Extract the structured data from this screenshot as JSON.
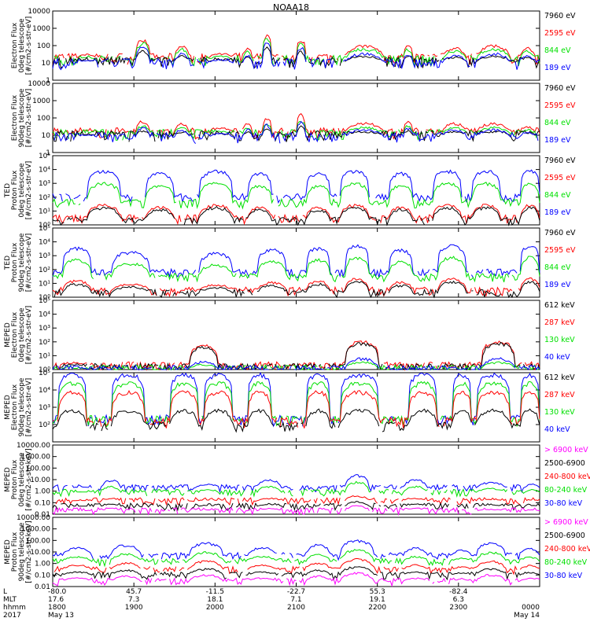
{
  "title": "NOAA18",
  "colors": {
    "black": "#000000",
    "red": "#ff0000",
    "green": "#00e000",
    "blue": "#0000ff",
    "magenta": "#ff00ff"
  },
  "x_axis": {
    "row_labels": [
      "L",
      "MLT",
      "hhmm",
      "2017"
    ],
    "columns": [
      {
        "L": "-80.0",
        "MLT": "17.6",
        "hhmm": "1800",
        "date": "May 13",
        "frac": 0.0
      },
      {
        "L": "45.7",
        "MLT": "7.3",
        "hhmm": "1900",
        "date": "",
        "frac": 0.1667
      },
      {
        "L": "-11.5",
        "MLT": "18.1",
        "hhmm": "2000",
        "date": "",
        "frac": 0.3333
      },
      {
        "L": "-22.7",
        "MLT": "7.1",
        "hhmm": "2100",
        "date": "",
        "frac": 0.5
      },
      {
        "L": "55.3",
        "MLT": "19.1",
        "hhmm": "2200",
        "date": "",
        "frac": 0.6667
      },
      {
        "L": "-82.4",
        "MLT": "6.3",
        "hhmm": "2300",
        "date": "",
        "frac": 0.8333
      },
      {
        "L": "",
        "MLT": "",
        "hhmm": "0000",
        "date": "May 14",
        "frac": 1.0
      }
    ]
  },
  "chart_data": [
    {
      "type": "line",
      "scale": "log",
      "ylabel": [
        "Electron Flux",
        "0deg telescope",
        "[#/cm2-s-str-eV]"
      ],
      "ylim": [
        1,
        10000
      ],
      "ticks": [
        {
          "v": 1,
          "t": "1"
        },
        {
          "v": 10,
          "t": "10"
        },
        {
          "v": 100,
          "t": "100"
        },
        {
          "v": 1000,
          "t": "1000"
        },
        {
          "v": 10000,
          "t": "10000"
        }
      ],
      "series": [
        {
          "name": "7960 eV",
          "color": "#000000",
          "base": 12,
          "peak": 60
        },
        {
          "name": "2595 eV",
          "color": "#ff0000",
          "base": 20,
          "peak": 300
        },
        {
          "name": "844 eV",
          "color": "#00e000",
          "base": 15,
          "peak": 200
        },
        {
          "name": "189 eV",
          "color": "#0000ff",
          "base": 10,
          "peak": 100
        }
      ],
      "events": [
        [
          0.05,
          0.09,
          40
        ],
        [
          0.17,
          0.2,
          800
        ],
        [
          0.25,
          0.28,
          300
        ],
        [
          0.32,
          0.37,
          60
        ],
        [
          0.39,
          0.41,
          200
        ],
        [
          0.43,
          0.45,
          1500
        ],
        [
          0.5,
          0.52,
          800
        ],
        [
          0.6,
          0.68,
          300
        ],
        [
          0.72,
          0.74,
          300
        ],
        [
          0.8,
          0.85,
          200
        ],
        [
          0.87,
          0.94,
          300
        ],
        [
          0.96,
          0.99,
          200
        ]
      ]
    },
    {
      "type": "line",
      "scale": "log",
      "ylabel": [
        "Electron Flux",
        "90deg telescope",
        "[#/cm2-s-str-eV]"
      ],
      "ylim": [
        1,
        10000
      ],
      "ticks": [
        {
          "v": 1,
          "t": "1"
        },
        {
          "v": 10,
          "t": "10"
        },
        {
          "v": 100,
          "t": "100"
        },
        {
          "v": 1000,
          "t": "1000"
        },
        {
          "v": 10000,
          "t": "10000"
        }
      ],
      "series": [
        {
          "name": "7960 eV",
          "color": "#000000",
          "base": 10,
          "peak": 40
        },
        {
          "name": "2595 eV",
          "color": "#ff0000",
          "base": 15,
          "peak": 200
        },
        {
          "name": "844 eV",
          "color": "#00e000",
          "base": 12,
          "peak": 100
        },
        {
          "name": "189 eV",
          "color": "#0000ff",
          "base": 8,
          "peak": 80
        }
      ],
      "events": [
        [
          0.05,
          0.09,
          30
        ],
        [
          0.17,
          0.2,
          300
        ],
        [
          0.25,
          0.28,
          200
        ],
        [
          0.32,
          0.37,
          60
        ],
        [
          0.39,
          0.41,
          200
        ],
        [
          0.43,
          0.45,
          500
        ],
        [
          0.5,
          0.52,
          800
        ],
        [
          0.6,
          0.68,
          200
        ],
        [
          0.72,
          0.74,
          300
        ],
        [
          0.8,
          0.85,
          200
        ],
        [
          0.87,
          0.94,
          200
        ],
        [
          0.96,
          0.99,
          100
        ]
      ]
    },
    {
      "type": "line",
      "scale": "log",
      "ylabel": [
        "TED",
        "Proton Flux",
        "0deg telescope",
        "[#/cm2-s-str-eV]"
      ],
      "ylim": [
        1,
        100000
      ],
      "ticks": [
        {
          "v": 1,
          "t": "10⁰"
        },
        {
          "v": 10,
          "t": "10¹"
        },
        {
          "v": 100,
          "t": "10²"
        },
        {
          "v": 1000,
          "t": "10³"
        },
        {
          "v": 10000,
          "t": "10⁴"
        },
        {
          "v": 100000,
          "t": "10⁵"
        }
      ],
      "series": [
        {
          "name": "7960 eV",
          "color": "#000000",
          "base": 2,
          "peak": 8
        },
        {
          "name": "2595 eV",
          "color": "#ff0000",
          "base": 3,
          "peak": 12
        },
        {
          "name": "844 eV",
          "color": "#00e000",
          "base": 40,
          "peak": 400
        },
        {
          "name": "189 eV",
          "color": "#0000ff",
          "base": 100,
          "peak": 3000
        }
      ],
      "events": [
        [
          0.07,
          0.14,
          3000
        ],
        [
          0.19,
          0.25,
          2000
        ],
        [
          0.3,
          0.37,
          3000
        ],
        [
          0.4,
          0.45,
          2000
        ],
        [
          0.52,
          0.57,
          2000
        ],
        [
          0.59,
          0.65,
          3000
        ],
        [
          0.69,
          0.74,
          2000
        ],
        [
          0.78,
          0.84,
          3000
        ],
        [
          0.86,
          0.92,
          3000
        ],
        [
          0.96,
          1.0,
          30000
        ]
      ]
    },
    {
      "type": "line",
      "scale": "log",
      "ylabel": [
        "TED",
        "Proton Flux",
        "90deg telescope",
        "[#/cm2-s-str-eV]"
      ],
      "ylim": [
        1,
        100000
      ],
      "ticks": [
        {
          "v": 1,
          "t": "10⁰"
        },
        {
          "v": 10,
          "t": "10¹"
        },
        {
          "v": 100,
          "t": "10²"
        },
        {
          "v": 1000,
          "t": "10³"
        },
        {
          "v": 10000,
          "t": "10⁴"
        },
        {
          "v": 100000,
          "t": "10⁵"
        }
      ],
      "series": [
        {
          "name": "7960 eV",
          "color": "#000000",
          "base": 2,
          "peak": 6
        },
        {
          "name": "2595 eV",
          "color": "#ff0000",
          "base": 3,
          "peak": 10
        },
        {
          "name": "844 eV",
          "color": "#00e000",
          "base": 30,
          "peak": 300
        },
        {
          "name": "189 eV",
          "color": "#0000ff",
          "base": 60,
          "peak": 2000
        }
      ],
      "events": [
        [
          0.02,
          0.08,
          2000
        ],
        [
          0.12,
          0.2,
          1000
        ],
        [
          0.3,
          0.37,
          800
        ],
        [
          0.42,
          0.48,
          1500
        ],
        [
          0.52,
          0.57,
          2000
        ],
        [
          0.6,
          0.65,
          3000
        ],
        [
          0.69,
          0.74,
          1500
        ],
        [
          0.79,
          0.85,
          6000
        ],
        [
          0.96,
          1.0,
          60000
        ]
      ]
    },
    {
      "type": "line",
      "scale": "log",
      "ylabel": [
        "MEPED",
        "Electron Flux",
        "0deg telescope",
        "[#/cm2-s-str-eV]"
      ],
      "ylim": [
        1,
        100000
      ],
      "ticks": [
        {
          "v": 1,
          "t": "10⁰"
        },
        {
          "v": 10,
          "t": "10¹"
        },
        {
          "v": 100,
          "t": "10²"
        },
        {
          "v": 1000,
          "t": "10³"
        },
        {
          "v": 10000,
          "t": "10⁴"
        },
        {
          "v": 100000,
          "t": "10⁵"
        }
      ],
      "series": [
        {
          "name": "612 keV",
          "color": "#000000",
          "base": 1.5,
          "peak": 30
        },
        {
          "name": "287 keV",
          "color": "#ff0000",
          "base": 2,
          "peak": 40
        },
        {
          "name": "130 keV",
          "color": "#00e000",
          "base": 1.2,
          "peak": 2
        },
        {
          "name": "40 keV",
          "color": "#0000ff",
          "base": 1.1,
          "peak": 3
        }
      ],
      "events": [
        [
          0.02,
          0.07,
          30
        ],
        [
          0.28,
          0.34,
          1500
        ],
        [
          0.6,
          0.67,
          60000
        ],
        [
          0.88,
          0.95,
          80000
        ]
      ]
    },
    {
      "type": "line",
      "scale": "log",
      "ylabel": [
        "MEPED",
        "Electron Flux",
        "90deg telescope",
        "[#/cm2-s-str-eV]"
      ],
      "ylim": [
        10,
        100000
      ],
      "ticks": [
        {
          "v": 100,
          "t": "10²"
        },
        {
          "v": 1000,
          "t": "10³"
        },
        {
          "v": 10000,
          "t": "10⁴"
        },
        {
          "v": 100000,
          "t": "10⁵"
        }
      ],
      "series": [
        {
          "name": "612 keV",
          "color": "#000000",
          "base": 80,
          "peak": 300
        },
        {
          "name": "287 keV",
          "color": "#ff0000",
          "base": 150,
          "peak": 3000
        },
        {
          "name": "130 keV",
          "color": "#00e000",
          "base": 180,
          "peak": 10000
        },
        {
          "name": "40 keV",
          "color": "#0000ff",
          "base": 200,
          "peak": 30000
        }
      ],
      "events": [
        [
          0.01,
          0.07,
          30000
        ],
        [
          0.12,
          0.19,
          5000
        ],
        [
          0.24,
          0.3,
          10000
        ],
        [
          0.31,
          0.37,
          20000
        ],
        [
          0.4,
          0.45,
          5000
        ],
        [
          0.52,
          0.57,
          5000
        ],
        [
          0.59,
          0.67,
          30000
        ],
        [
          0.73,
          0.79,
          5000
        ],
        [
          0.82,
          0.86,
          10000
        ],
        [
          0.87,
          0.94,
          30000
        ],
        [
          0.96,
          1.0,
          8000
        ]
      ]
    },
    {
      "type": "line",
      "scale": "log",
      "ylabel": [
        "MEPED",
        "Proton Flux",
        "0deg telescope",
        "[#/cm2-s-str-keV]"
      ],
      "ylim": [
        0.01,
        10000
      ],
      "ticks": [
        {
          "v": 0.01,
          "t": "0.01"
        },
        {
          "v": 0.1,
          "t": "0.10"
        },
        {
          "v": 1,
          "t": "1.00"
        },
        {
          "v": 10,
          "t": "10.00"
        },
        {
          "v": 100,
          "t": "100.00"
        },
        {
          "v": 1000,
          "t": "1000.00"
        },
        {
          "v": 10000,
          "t": "10000.00"
        }
      ],
      "series": [
        {
          "name": "> 6900 keV",
          "color": "#ff00ff",
          "base": 0.02,
          "peak": 0.15
        },
        {
          "name": "2500-6900",
          "color": "#000000",
          "base": 0.05,
          "peak": 0.3
        },
        {
          "name": "240-800 keV",
          "color": "#ff0000",
          "base": 0.15,
          "peak": 1
        },
        {
          "name": "80-240 keV",
          "color": "#00e000",
          "base": 0.8,
          "peak": 20
        },
        {
          "name": "30-80 keV",
          "color": "#0000ff",
          "base": 2,
          "peak": 80
        }
      ],
      "events": [
        [
          0.04,
          0.08,
          3
        ],
        [
          0.1,
          0.14,
          100
        ],
        [
          0.3,
          0.34,
          30
        ],
        [
          0.42,
          0.47,
          100
        ],
        [
          0.6,
          0.65,
          300
        ],
        [
          0.72,
          0.77,
          100
        ],
        [
          0.87,
          0.93,
          50
        ],
        [
          0.97,
          1.0,
          30
        ]
      ]
    },
    {
      "type": "line",
      "scale": "log",
      "ylabel": [
        "MEPED",
        "Proton Flux",
        "90deg telescope",
        "[#/cm2-s-str-keV]"
      ],
      "ylim": [
        0.01,
        10000
      ],
      "ticks": [
        {
          "v": 0.01,
          "t": "0.01"
        },
        {
          "v": 0.1,
          "t": "0.10"
        },
        {
          "v": 1,
          "t": "1.00"
        },
        {
          "v": 10,
          "t": "10.00"
        },
        {
          "v": 100,
          "t": "100.00"
        },
        {
          "v": 1000,
          "t": "1000.00"
        },
        {
          "v": 10000,
          "t": "10000.00"
        }
      ],
      "series": [
        {
          "name": "> 6900 keV",
          "color": "#ff00ff",
          "base": 0.03,
          "peak": 0.3
        },
        {
          "name": "2500-6900",
          "color": "#000000",
          "base": 0.1,
          "peak": 1
        },
        {
          "name": "240-800 keV",
          "color": "#ff0000",
          "base": 0.3,
          "peak": 5
        },
        {
          "name": "80-240 keV",
          "color": "#00e000",
          "base": 1.5,
          "peak": 30
        },
        {
          "name": "30-80 keV",
          "color": "#0000ff",
          "base": 5,
          "peak": 200
        }
      ],
      "events": [
        [
          0.02,
          0.08,
          100
        ],
        [
          0.12,
          0.18,
          200
        ],
        [
          0.28,
          0.35,
          300
        ],
        [
          0.4,
          0.46,
          100
        ],
        [
          0.52,
          0.57,
          200
        ],
        [
          0.59,
          0.66,
          500
        ],
        [
          0.72,
          0.77,
          100
        ],
        [
          0.82,
          0.86,
          50
        ],
        [
          0.87,
          0.93,
          300
        ],
        [
          0.96,
          1.0,
          80
        ]
      ]
    }
  ]
}
